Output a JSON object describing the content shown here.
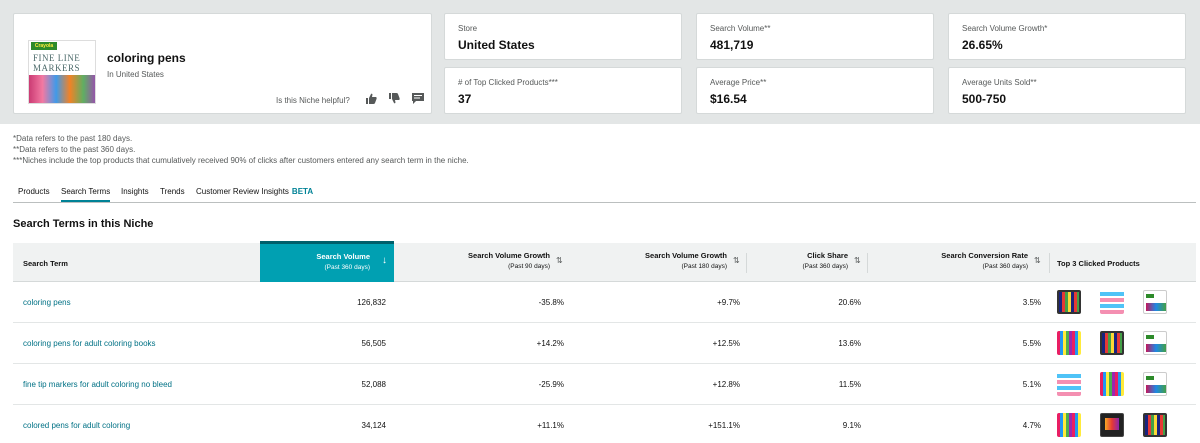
{
  "niche": {
    "name": "coloring pens",
    "subtitle": "In United States",
    "helpful_prompt": "Is this Niche helpful?",
    "thumb_logo": "Crayola",
    "thumb_title": "FINE LINE MARKERS"
  },
  "metrics": [
    {
      "label": "Store",
      "value": "United States"
    },
    {
      "label": "Search Volume**",
      "value": "481,719"
    },
    {
      "label": "Search Volume Growth*",
      "value": "26.65%"
    },
    {
      "label": "# of Top Clicked Products***",
      "value": "37"
    },
    {
      "label": "Average Price**",
      "value": "$16.54"
    },
    {
      "label": "Average Units Sold**",
      "value": "500-750"
    }
  ],
  "notes": [
    "*Data refers to the past 180 days.",
    "**Data refers to the past 360 days.",
    "***Niches include the top products that cumulatively received 90% of clicks after customers entered any search term in the niche."
  ],
  "tabs": {
    "products": "Products",
    "search_terms": "Search Terms",
    "insights": "Insights",
    "trends": "Trends",
    "customer_review": "Customer Review Insights",
    "beta": "BETA"
  },
  "section_title": "Search Terms in this Niche",
  "columns": {
    "term": "Search Term",
    "volume": "Search Volume",
    "volume_sub": "(Past 360 days)",
    "growth90": "Search Volume Growth",
    "growth90_sub": "(Past 90 days)",
    "growth180": "Search Volume Growth",
    "growth180_sub": "(Past 180 days)",
    "click_share": "Click Share",
    "click_share_sub": "(Past 360 days)",
    "conversion": "Search Conversion Rate",
    "conversion_sub": "(Past 360 days)",
    "top3": "Top 3 Clicked Products"
  },
  "rows": [
    {
      "term": "coloring pens",
      "volume": "126,832",
      "growth90": "-35.8%",
      "growth180": "+9.7%",
      "click_share": "20.6%",
      "conversion": "3.5%"
    },
    {
      "term": "coloring pens for adult coloring books",
      "volume": "56,505",
      "growth90": "+14.2%",
      "growth180": "+12.5%",
      "click_share": "13.6%",
      "conversion": "5.5%"
    },
    {
      "term": "fine tip markers for adult coloring no bleed",
      "volume": "52,088",
      "growth90": "-25.9%",
      "growth180": "+12.8%",
      "click_share": "11.5%",
      "conversion": "5.1%"
    },
    {
      "term": "colored pens for adult coloring",
      "volume": "34,124",
      "growth90": "+11.1%",
      "growth180": "+151.1%",
      "click_share": "9.1%",
      "conversion": "4.7%"
    }
  ],
  "colors": {
    "accent": "#008296",
    "sorted_header": "#00a0b2",
    "link": "#007185",
    "band": "#e3e6e6"
  }
}
